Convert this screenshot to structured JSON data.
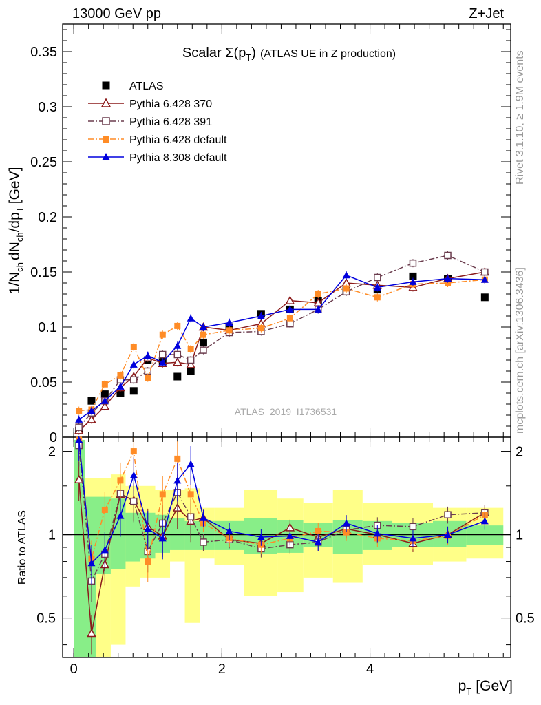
{
  "header": {
    "left": "13000 GeV pp",
    "right": "Z+Jet"
  },
  "plot_title": "Scalar Σ(p_T) (ATLAS UE in Z production)",
  "watermark": "ATLAS_2019_I1736531",
  "side_labels": {
    "rivet": "Rivet 3.1.10, ≥ 1.9M events",
    "mcplots": "mcplots.cern.ch [arXiv:1306.3436]"
  },
  "axis_labels": {
    "ylabel_main": "1/N_ch dN_ch/dp_T [GeV]",
    "ylabel_ratio": "Ratio to ATLAS",
    "xlabel": "p_T [GeV]"
  },
  "chart_data": {
    "type": "scatter",
    "x_range": [
      -0.15,
      5.9
    ],
    "main_ylim": [
      0,
      0.375
    ],
    "ratio_ylim": [
      0.36,
      2.25
    ],
    "main_yticks": [
      "0",
      "0.05",
      "0.1",
      "0.15",
      "0.2",
      "0.25",
      "0.3",
      "0.35"
    ],
    "ratio_yticks": [
      "0.5",
      "1",
      "2"
    ],
    "xticks": [
      "0",
      "2",
      "4"
    ],
    "legend_position": "top-left",
    "bin_edges": [
      0,
      0.15,
      0.3,
      0.5,
      0.7,
      0.9,
      1.1,
      1.3,
      1.5,
      1.7,
      1.9,
      2.3,
      2.75,
      3.1,
      3.5,
      3.9,
      4.3,
      4.85,
      5.3,
      5.8
    ],
    "x": [
      0.07,
      0.24,
      0.42,
      0.63,
      0.81,
      1.0,
      1.2,
      1.4,
      1.58,
      1.75,
      2.1,
      2.53,
      2.92,
      3.3,
      3.68,
      4.1,
      4.58,
      5.05,
      5.55
    ],
    "band_inner": [
      0.1,
      0.28,
      0.72,
      0.75,
      0.8,
      0.82,
      0.86,
      0.88,
      0.88,
      0.88,
      0.88,
      0.85,
      0.86,
      0.9,
      0.85,
      0.88,
      0.9,
      0.9,
      0.92
    ],
    "band_outer": [
      0.3,
      0.2,
      0.35,
      0.4,
      0.65,
      0.7,
      0.7,
      0.8,
      0.48,
      0.82,
      0.78,
      0.6,
      0.62,
      0.7,
      0.67,
      0.78,
      0.78,
      0.8,
      0.82
    ],
    "band_inner_top": [
      2.2,
      1.37,
      1.37,
      1.35,
      1.2,
      1.2,
      1.18,
      1.15,
      1.12,
      1.12,
      1.12,
      1.15,
      1.13,
      1.1,
      1.13,
      1.12,
      1.1,
      1.12,
      1.08
    ],
    "band_outer_top": [
      2.2,
      1.6,
      1.6,
      1.65,
      1.5,
      1.5,
      1.45,
      1.45,
      1.47,
      1.25,
      1.25,
      1.45,
      1.35,
      1.3,
      1.45,
      1.3,
      1.3,
      1.25,
      1.25
    ],
    "series": [
      {
        "name": "ATLAS",
        "color": "#000000",
        "marker": "square-filled",
        "values": [
          0.006,
          0.033,
          0.039,
          0.04,
          0.042,
          0.07,
          0.069,
          0.055,
          0.06,
          0.086,
          0.1,
          0.112,
          0.116,
          0.124,
          0.133,
          0.134,
          0.146,
          0.144,
          0.127
        ],
        "ratio": [
          1,
          1,
          1,
          1,
          1,
          1,
          1,
          1,
          1,
          1,
          1,
          1,
          1,
          1,
          1,
          1,
          1,
          1,
          1
        ]
      },
      {
        "name": "Pythia 6.428 370",
        "color": "#8b1a1a",
        "marker": "triangle-open",
        "dash": "",
        "values": [
          0.006,
          0.016,
          0.028,
          0.045,
          0.055,
          0.072,
          0.067,
          0.068,
          0.066,
          0.1,
          0.097,
          0.103,
          0.124,
          0.122,
          0.14,
          0.138,
          0.136,
          0.144,
          0.15
        ],
        "ratio": [
          1.58,
          0.44,
          0.78,
          1.4,
          1.33,
          1.07,
          0.99,
          1.25,
          1.12,
          1.15,
          0.96,
          0.93,
          1.06,
          0.98,
          1.05,
          1.0,
          0.93,
          1.0,
          1.2
        ]
      },
      {
        "name": "Pythia 6.428 391",
        "color": "#6b3d4e",
        "marker": "square-open",
        "dash": "8,3,2,3",
        "values": [
          0.009,
          0.022,
          0.033,
          0.052,
          0.052,
          0.06,
          0.075,
          0.075,
          0.07,
          0.079,
          0.095,
          0.096,
          0.103,
          0.116,
          0.132,
          0.145,
          0.158,
          0.165,
          0.15
        ],
        "ratio": [
          2.1,
          0.68,
          0.85,
          1.41,
          1.32,
          0.87,
          1.1,
          1.42,
          1.16,
          0.94,
          0.96,
          0.89,
          0.92,
          0.94,
          1.04,
          1.08,
          1.07,
          1.18,
          1.2
        ]
      },
      {
        "name": "Pythia 6.428 default",
        "color": "#ff8c26",
        "marker": "square-filled",
        "dash": "8,3,2,3",
        "values": [
          0.024,
          0.025,
          0.048,
          0.056,
          0.082,
          0.054,
          0.093,
          0.101,
          0.08,
          0.093,
          0.097,
          0.099,
          0.108,
          0.13,
          0.135,
          0.127,
          0.139,
          0.14,
          0.143
        ],
        "ratio": [
          2.2,
          0.82,
          1.23,
          1.57,
          2.0,
          0.8,
          1.4,
          1.88,
          1.4,
          1.1,
          0.97,
          0.92,
          0.97,
          1.03,
          1.02,
          0.97,
          0.95,
          0.99,
          1.18
        ]
      },
      {
        "name": "Pythia 8.308 default",
        "color": "#0000dd",
        "marker": "triangle-filled",
        "dash": "",
        "values": [
          0.016,
          0.024,
          0.033,
          0.046,
          0.066,
          0.074,
          0.068,
          0.083,
          0.108,
          0.1,
          0.104,
          0.11,
          0.116,
          0.116,
          0.147,
          0.136,
          0.141,
          0.144,
          0.143
        ],
        "ratio": [
          2.2,
          0.79,
          0.88,
          1.17,
          1.64,
          1.05,
          0.97,
          1.57,
          1.8,
          1.15,
          1.03,
          0.98,
          0.99,
          0.94,
          1.1,
          1.01,
          0.97,
          1.0,
          1.12
        ]
      }
    ]
  }
}
